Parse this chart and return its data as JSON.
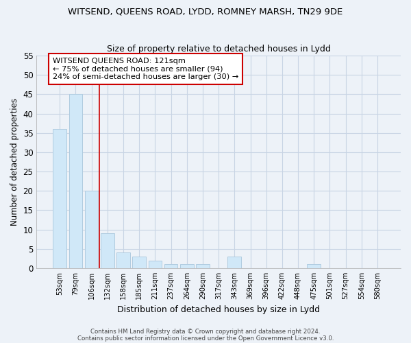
{
  "title1": "WITSEND, QUEENS ROAD, LYDD, ROMNEY MARSH, TN29 9DE",
  "title2": "Size of property relative to detached houses in Lydd",
  "xlabel": "Distribution of detached houses by size in Lydd",
  "ylabel": "Number of detached properties",
  "categories": [
    "53sqm",
    "79sqm",
    "106sqm",
    "132sqm",
    "158sqm",
    "185sqm",
    "211sqm",
    "237sqm",
    "264sqm",
    "290sqm",
    "317sqm",
    "343sqm",
    "369sqm",
    "396sqm",
    "422sqm",
    "448sqm",
    "475sqm",
    "501sqm",
    "527sqm",
    "554sqm",
    "580sqm"
  ],
  "values": [
    36,
    45,
    20,
    9,
    4,
    3,
    2,
    1,
    1,
    1,
    0,
    3,
    0,
    0,
    0,
    0,
    1,
    0,
    0,
    0,
    0
  ],
  "bar_color": "#d0e8f8",
  "bar_edge_color": "#b0cce0",
  "grid_color": "#c8d4e4",
  "background_color": "#edf2f8",
  "vline_x": 2.5,
  "vline_color": "#cc0000",
  "annotation_text": "WITSEND QUEENS ROAD: 121sqm\n← 75% of detached houses are smaller (94)\n24% of semi-detached houses are larger (30) →",
  "annotation_box_color": "#ffffff",
  "annotation_border_color": "#cc0000",
  "ylim": [
    0,
    55
  ],
  "yticks": [
    0,
    5,
    10,
    15,
    20,
    25,
    30,
    35,
    40,
    45,
    50,
    55
  ],
  "footer1": "Contains HM Land Registry data © Crown copyright and database right 2024.",
  "footer2": "Contains public sector information licensed under the Open Government Licence v3.0."
}
